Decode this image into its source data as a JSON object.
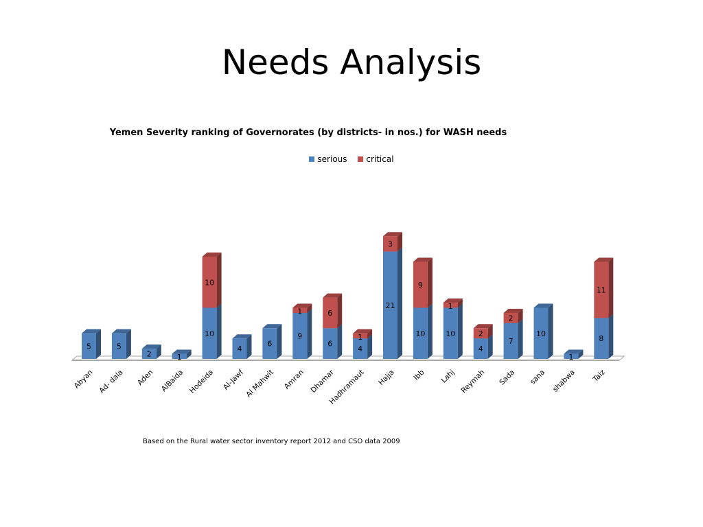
{
  "slide": {
    "title": "Needs Analysis",
    "source_note": "Based on the Rural water sector inventory report 2012 and  CSO data 2009"
  },
  "chart_data": {
    "type": "bar",
    "stacked": true,
    "title": "Yemen Severity ranking of Governorates (by districts- in nos.) for WASH needs",
    "categories": [
      "Abyan",
      "Ad- dala",
      "Aden",
      "AlBaida",
      "Hodeida",
      "Al-Jawf",
      "Al Mahwit",
      "Amran",
      "Dhamar",
      "Hadhramaut",
      "Hajja",
      "Ibb",
      "Lahj",
      "Reymah",
      "Sada",
      "sana",
      "shabwa",
      "Taiz"
    ],
    "series": [
      {
        "name": "serious",
        "color": "#4F81BD",
        "values": [
          5,
          5,
          2,
          1,
          10,
          4,
          6,
          9,
          6,
          4,
          21,
          10,
          10,
          4,
          7,
          10,
          1,
          8
        ]
      },
      {
        "name": "critical",
        "color": "#C0504D",
        "values": [
          0,
          0,
          0,
          0,
          10,
          0,
          0,
          1,
          6,
          1,
          3,
          9,
          1,
          2,
          2,
          0,
          0,
          11
        ]
      }
    ],
    "legend_position": "top",
    "gridlines": false,
    "xlabel": "",
    "ylabel": ""
  }
}
